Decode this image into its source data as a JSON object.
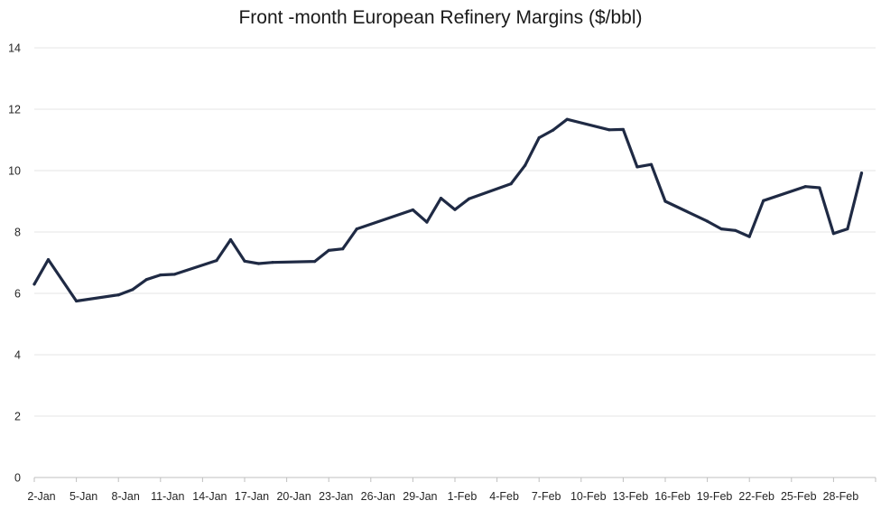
{
  "chart_data": {
    "type": "line",
    "title": "Front -month European Refinery Margins ($/bbl)",
    "xlabel": "",
    "ylabel": "",
    "ylim": [
      0,
      14
    ],
    "yticks": [
      0,
      2,
      4,
      6,
      8,
      10,
      12,
      14
    ],
    "x_tick_labels": [
      "2-Jan",
      "5-Jan",
      "8-Jan",
      "11-Jan",
      "14-Jan",
      "17-Jan",
      "20-Jan",
      "23-Jan",
      "26-Jan",
      "29-Jan",
      "1-Feb",
      "4-Feb",
      "7-Feb",
      "10-Feb",
      "13-Feb",
      "16-Feb",
      "19-Feb",
      "22-Feb",
      "25-Feb",
      "28-Feb"
    ],
    "x_start": "2-Jan",
    "x_end": "3-Mar",
    "grid": "horizontal",
    "legend": "none",
    "line_color": "#1f2a44",
    "series": [
      {
        "x": [
          "2-Jan",
          "3-Jan",
          "5-Jan",
          "8-Jan",
          "9-Jan",
          "10-Jan",
          "11-Jan",
          "12-Jan",
          "15-Jan",
          "16-Jan",
          "17-Jan",
          "18-Jan",
          "19-Jan",
          "22-Jan",
          "23-Jan",
          "24-Jan",
          "25-Jan",
          "29-Jan",
          "30-Jan",
          "31-Jan",
          "1-Feb",
          "2-Feb",
          "5-Feb",
          "6-Feb",
          "7-Feb",
          "8-Feb",
          "9-Feb",
          "12-Feb",
          "13-Feb",
          "14-Feb",
          "15-Feb",
          "16-Feb",
          "19-Feb",
          "20-Feb",
          "21-Feb",
          "22-Feb",
          "23-Feb",
          "26-Feb",
          "27-Feb",
          "28-Feb",
          "1-Mar",
          "2-Mar"
        ],
        "values": [
          6.3,
          7.1,
          5.75,
          5.95,
          6.12,
          6.45,
          6.6,
          6.62,
          7.07,
          7.75,
          7.05,
          6.97,
          7.01,
          7.04,
          7.4,
          7.45,
          8.1,
          8.72,
          8.32,
          9.1,
          8.73,
          9.08,
          9.57,
          10.17,
          11.07,
          11.32,
          11.67,
          11.33,
          11.34,
          10.12,
          10.2,
          9.0,
          8.35,
          8.1,
          8.05,
          7.85,
          9.02,
          9.48,
          9.44,
          7.95,
          8.1,
          9.92
        ]
      }
    ]
  }
}
